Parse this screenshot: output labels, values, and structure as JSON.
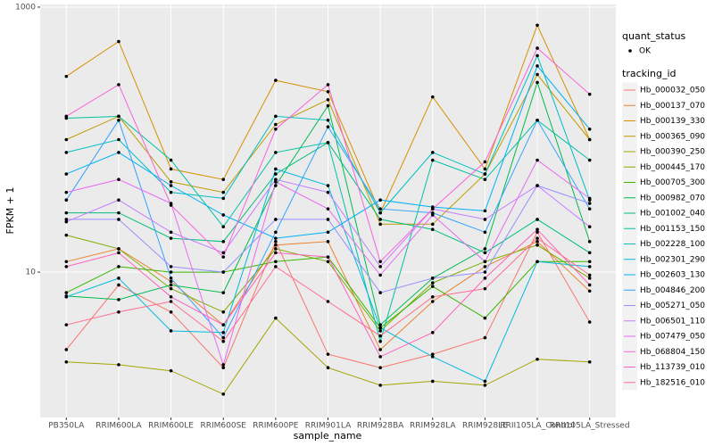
{
  "chart_data": {
    "type": "line",
    "x_label": "sample_name",
    "y_label": "FPKM + 1",
    "log_y": true,
    "grid": true,
    "ylim": [
      0.8,
      1047
    ],
    "yticks": [
      10,
      1000
    ],
    "point_color": "#000000",
    "point_legend_title": "quant_status",
    "point_legend_label": "OK",
    "legend_title": "tracking_id",
    "legend_position": "right",
    "categories": [
      "PB350LA",
      "RRIM600LA",
      "RRIM600LE",
      "RRIM600SE",
      "RRIM600PE",
      "RRIM901LA",
      "RRIM928BA",
      "RRIM928LA",
      "RRIM928LE",
      "RRII105LA_Control",
      "RRII105LA_Stressed"
    ],
    "series": [
      {
        "name": "Hb_000032_050",
        "color": "#F8766D",
        "values": [
          2.6,
          8.0,
          5.0,
          1.9,
          17,
          2.4,
          1.9,
          2.4,
          3.2,
          20,
          4.2
        ]
      },
      {
        "name": "Hb_000137_070",
        "color": "#EA8331",
        "values": [
          12,
          15,
          8.5,
          4.0,
          16,
          17,
          2.6,
          6.0,
          11,
          17,
          7.2
        ]
      },
      {
        "name": "Hb_000139_330",
        "color": "#D89000",
        "values": [
          300,
          550,
          60,
          50,
          280,
          230,
          28,
          210,
          60,
          730,
          100
        ]
      },
      {
        "name": "Hb_000365_090",
        "color": "#C09B00",
        "values": [
          100,
          150,
          48,
          40,
          130,
          200,
          23,
          23,
          55,
          310,
          100
        ]
      },
      {
        "name": "Hb_000390_250",
        "color": "#A3A500",
        "values": [
          2.1,
          2.0,
          1.8,
          1.2,
          4.5,
          1.9,
          1.4,
          1.5,
          1.4,
          2.2,
          2.1
        ]
      },
      {
        "name": "Hb_000445_170",
        "color": "#7CAE00",
        "values": [
          19,
          15,
          7.5,
          5.0,
          15,
          12,
          3.6,
          8.3,
          12,
          16,
          9.0
        ]
      },
      {
        "name": "Hb_000705_300",
        "color": "#39B600",
        "values": [
          7.0,
          11,
          10,
          10,
          12,
          13,
          3.8,
          7.8,
          4.5,
          12,
          12
        ]
      },
      {
        "name": "Hb_000982_070",
        "color": "#00BB4E",
        "values": [
          6.6,
          6.2,
          8.0,
          7.0,
          45,
          180,
          4.0,
          9.0,
          15,
          270,
          17
        ]
      },
      {
        "name": "Hb_001002_040",
        "color": "#00BF7D",
        "values": [
          28,
          28,
          18,
          17,
          55,
          95,
          25,
          21,
          14,
          25,
          14
        ]
      },
      {
        "name": "Hb_001153_150",
        "color": "#00C1A3",
        "values": [
          145,
          150,
          70,
          22,
          80,
          95,
          3.0,
          70,
          50,
          140,
          70
        ]
      },
      {
        "name": "Hb_002228_100",
        "color": "#00BFC4",
        "values": [
          80,
          100,
          40,
          36,
          150,
          140,
          28,
          80,
          55,
          430,
          35
        ]
      },
      {
        "name": "Hb_002301_290",
        "color": "#00BAE0",
        "values": [
          6.5,
          9.0,
          3.6,
          3.5,
          60,
          45,
          3.8,
          2.3,
          1.5,
          12,
          11
        ]
      },
      {
        "name": "Hb_002603_130",
        "color": "#00B0F6",
        "values": [
          55,
          80,
          45,
          27,
          18,
          20,
          35,
          31,
          29,
          360,
          120
        ]
      },
      {
        "name": "Hb_004846_200",
        "color": "#35A2FF",
        "values": [
          35,
          140,
          9.0,
          3.2,
          20,
          125,
          30,
          28,
          20,
          140,
          30
        ]
      },
      {
        "name": "Hb_005271_050",
        "color": "#9590FF",
        "values": [
          25,
          25,
          11,
          10,
          25,
          25,
          7,
          9,
          10,
          45,
          33
        ]
      },
      {
        "name": "Hb_006501_110",
        "color": "#C77CFF",
        "values": [
          24,
          35,
          20,
          14,
          50,
          40,
          11,
          30,
          25,
          45,
          22
        ]
      },
      {
        "name": "Hb_007479_050",
        "color": "#E76BF3",
        "values": [
          40,
          50,
          33,
          2.0,
          48,
          30,
          9.5,
          27,
          12,
          70,
          36
        ]
      },
      {
        "name": "Hb_068804_150",
        "color": "#FA62DB",
        "values": [
          150,
          260,
          32,
          13,
          120,
          260,
          12,
          30,
          68,
          490,
          220
        ]
      },
      {
        "name": "Hb_113739_010",
        "color": "#FF62BC",
        "values": [
          11,
          14,
          6.5,
          4.0,
          14,
          13,
          2.3,
          3.5,
          9.0,
          21,
          8.0
        ]
      },
      {
        "name": "Hb_182516_010",
        "color": "#FF6C91",
        "values": [
          4.0,
          5.0,
          6.0,
          3.0,
          11,
          6.0,
          3.3,
          6.5,
          7.5,
          18,
          9.5
        ]
      }
    ]
  }
}
